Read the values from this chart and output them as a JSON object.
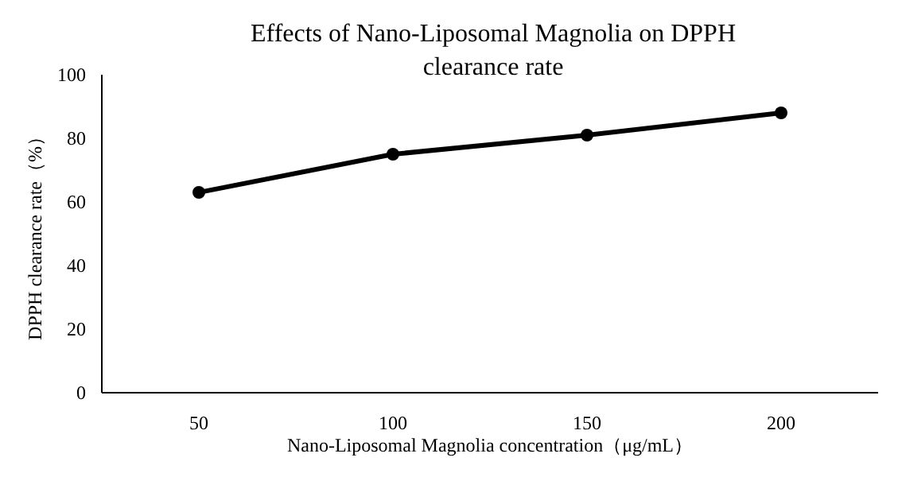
{
  "chart_data": {
    "type": "line",
    "title": "Effects of Nano-Liposomal Magnolia on DPPH clearance rate",
    "xlabel": "Nano-Liposomal Magnolia concentration（μg/mL）",
    "ylabel": "DPPH clearance rate（%）",
    "categories": [
      "50",
      "100",
      "150",
      "200"
    ],
    "series": [
      {
        "color": "#000000",
        "values": [
          63,
          75,
          81,
          88
        ]
      }
    ],
    "ylim": [
      0,
      100
    ],
    "yticks": [
      0,
      20,
      40,
      60,
      80,
      100
    ],
    "marker": "circle",
    "line_style": "solid",
    "grid": false
  }
}
